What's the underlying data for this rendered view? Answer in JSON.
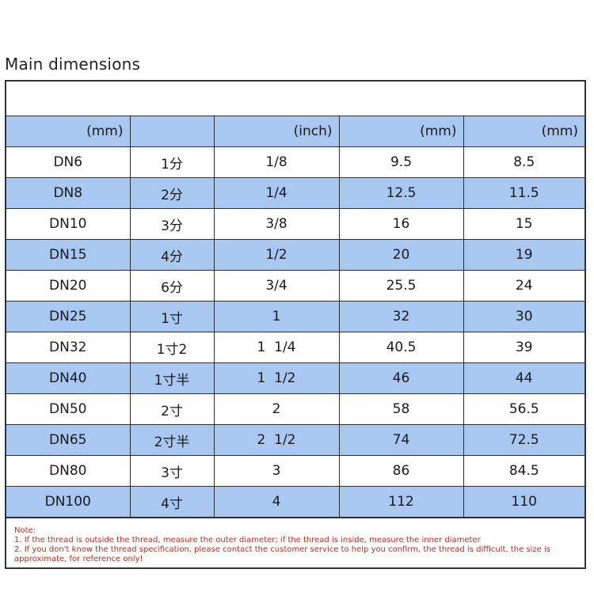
{
  "title": "Main dimensions",
  "table": {
    "header": [
      "(mm)",
      "",
      "(inch)",
      "(mm)",
      "(mm)"
    ],
    "rows": [
      [
        "DN6",
        "1分",
        "1/8",
        "9.5",
        "8.5"
      ],
      [
        "DN8",
        "2分",
        "1/4",
        "12.5",
        "11.5"
      ],
      [
        "DN10",
        "3分",
        "3/8",
        "16",
        "15"
      ],
      [
        "DN15",
        "4分",
        "1/2",
        "20",
        "19"
      ],
      [
        "DN20",
        "6分",
        "3/4",
        "25.5",
        "24"
      ],
      [
        "DN25",
        "1寸",
        "1",
        "32",
        "30"
      ],
      [
        "DN32",
        "1寸2",
        "1  1/4",
        "40.5",
        "39"
      ],
      [
        "DN40",
        "1寸半",
        "1  1/2",
        "46",
        "44"
      ],
      [
        "DN50",
        "2寸",
        "2",
        "58",
        "56.5"
      ],
      [
        "DN65",
        "2寸半",
        "2  1/2",
        "74",
        "72.5"
      ],
      [
        "DN80",
        "3寸",
        "3",
        "86",
        "84.5"
      ],
      [
        "DN100",
        "4寸",
        "4",
        "112",
        "110"
      ]
    ]
  },
  "note": {
    "heading": "Note:",
    "lines": [
      "1. If the thread is outside the thread, measure the outer diameter; if the thread is inside, measure the inner diameter",
      "2. If you don't know the thread specification, please contact the customer service to help you confirm, the thread is difficult, the size is approximate, for reference only!"
    ]
  },
  "colors": {
    "band": "#a9c8f1",
    "note_text": "#b03020",
    "border": "#2e2e2e"
  }
}
